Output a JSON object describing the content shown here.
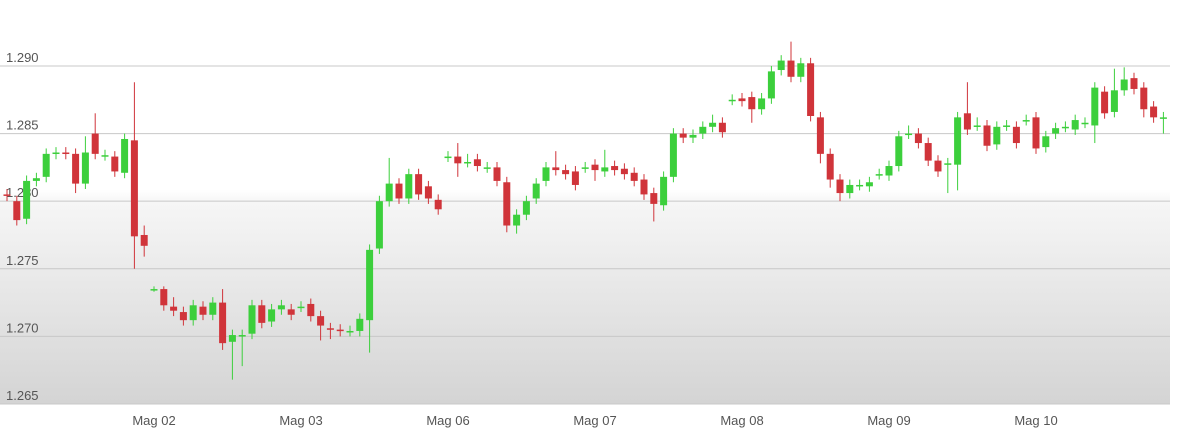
{
  "chart_data": {
    "type": "candlestick",
    "categories": [
      null,
      null,
      null,
      null,
      null,
      null,
      null,
      null,
      null,
      null,
      null,
      null,
      null,
      null,
      null,
      "Mag 02",
      null,
      null,
      null,
      null,
      null,
      null,
      null,
      null,
      null,
      null,
      null,
      null,
      null,
      null,
      "Mag 03",
      null,
      null,
      null,
      null,
      null,
      null,
      null,
      null,
      null,
      null,
      null,
      null,
      null,
      null,
      "Mag 06",
      null,
      null,
      null,
      null,
      null,
      null,
      null,
      null,
      null,
      null,
      null,
      null,
      null,
      null,
      "Mag 07",
      null,
      null,
      null,
      null,
      null,
      null,
      null,
      null,
      null,
      null,
      null,
      null,
      null,
      null,
      "Mag 08",
      null,
      null,
      null,
      null,
      null,
      null,
      null,
      null,
      null,
      null,
      null,
      null,
      null,
      null,
      "Mag 09",
      null,
      null,
      null,
      null,
      null,
      null,
      null,
      null,
      null,
      null,
      null,
      null,
      null,
      null,
      "Mag 10",
      null,
      null,
      null,
      null,
      null,
      null,
      null,
      null,
      null,
      null,
      null,
      null,
      null
    ],
    "open": [
      1.2805,
      1.28,
      1.2787,
      1.2815,
      1.2818,
      1.2835,
      1.2836,
      1.2835,
      1.2813,
      1.285,
      1.2834,
      1.2833,
      1.2821,
      1.2845,
      1.2775,
      1.2735,
      1.2735,
      1.2722,
      1.2718,
      1.2712,
      1.2722,
      1.2716,
      1.2725,
      1.2696,
      1.2701,
      1.2702,
      1.2723,
      1.2711,
      1.272,
      1.272,
      1.2722,
      1.2724,
      1.2715,
      1.2706,
      1.2705,
      1.2704,
      1.2704,
      1.2712,
      1.2765,
      1.28,
      1.2813,
      1.2802,
      1.282,
      1.2811,
      1.2801,
      1.2833,
      1.2833,
      1.2829,
      1.2831,
      1.2825,
      1.2825,
      1.2814,
      1.2782,
      1.279,
      1.2802,
      1.2815,
      1.2825,
      1.2823,
      1.2822,
      1.2825,
      1.2827,
      1.2822,
      1.2826,
      1.2824,
      1.2821,
      1.2816,
      1.2806,
      1.2797,
      1.2818,
      1.285,
      1.2847,
      1.285,
      1.2855,
      1.2858,
      1.2875,
      1.2876,
      1.2877,
      1.2868,
      1.2876,
      1.2897,
      1.2904,
      1.2892,
      1.2902,
      1.2862,
      1.2835,
      1.2816,
      1.2806,
      1.2812,
      1.2811,
      1.282,
      1.2819,
      1.2826,
      1.285,
      1.285,
      1.2843,
      1.283,
      1.2828,
      1.2827,
      1.2865,
      1.2856,
      1.2856,
      1.2842,
      1.2856,
      1.2855,
      1.286,
      1.2862,
      1.284,
      1.285,
      1.2855,
      1.2853,
      1.2858,
      1.2856,
      1.2881,
      1.2866,
      1.2882,
      1.2891,
      1.2884,
      1.287,
      1.2862
    ],
    "high": [
      1.2809,
      1.2804,
      1.2819,
      1.2821,
      1.2839,
      1.284,
      1.284,
      1.2839,
      1.2848,
      1.2865,
      1.2838,
      1.2837,
      1.285,
      1.2888,
      1.2782,
      1.2737,
      1.2737,
      1.2729,
      1.2722,
      1.2727,
      1.2726,
      1.2729,
      1.2735,
      1.2705,
      1.2705,
      1.2727,
      1.2727,
      1.2724,
      1.2727,
      1.2724,
      1.2726,
      1.2728,
      1.2719,
      1.271,
      1.2709,
      1.2708,
      1.2717,
      1.2768,
      1.2804,
      1.2832,
      1.2817,
      1.2824,
      1.2824,
      1.2815,
      1.2805,
      1.2837,
      1.2843,
      1.2835,
      1.2835,
      1.2829,
      1.2829,
      1.2818,
      1.2794,
      1.2804,
      1.2817,
      1.2829,
      1.2837,
      1.2827,
      1.2826,
      1.2829,
      1.2831,
      1.2838,
      1.283,
      1.2828,
      1.2825,
      1.282,
      1.281,
      1.2822,
      1.2854,
      1.2854,
      1.2853,
      1.2859,
      1.2864,
      1.2862,
      1.2879,
      1.288,
      1.2881,
      1.288,
      1.29,
      1.2908,
      1.2918,
      1.2906,
      1.2906,
      1.2866,
      1.2839,
      1.282,
      1.2816,
      1.2816,
      1.2818,
      1.2824,
      1.283,
      1.2852,
      1.2856,
      1.2854,
      1.2847,
      1.2834,
      1.2832,
      1.2866,
      1.2888,
      1.2862,
      1.286,
      1.2859,
      1.286,
      1.2859,
      1.2864,
      1.2866,
      1.2852,
      1.2858,
      1.2859,
      1.2864,
      1.2862,
      1.2888,
      1.2885,
      1.2898,
      1.2899,
      1.2895,
      1.2888,
      1.2874,
      1.2866
    ],
    "low": [
      1.28,
      1.2782,
      1.2783,
      1.2811,
      1.2814,
      1.2831,
      1.2831,
      1.2806,
      1.2809,
      1.2831,
      1.283,
      1.2818,
      1.2817,
      1.275,
      1.2759,
      1.2733,
      1.2719,
      1.2715,
      1.2708,
      1.2708,
      1.2712,
      1.2712,
      1.269,
      1.2668,
      1.2678,
      1.2698,
      1.2706,
      1.2707,
      1.2716,
      1.2712,
      1.2718,
      1.2711,
      1.2697,
      1.2698,
      1.27,
      1.27,
      1.27,
      1.2688,
      1.2761,
      1.2796,
      1.2798,
      1.2798,
      1.2801,
      1.2798,
      1.279,
      1.2829,
      1.2818,
      1.2825,
      1.2822,
      1.2821,
      1.2811,
      1.2777,
      1.2776,
      1.2786,
      1.2798,
      1.2811,
      1.2819,
      1.2816,
      1.2808,
      1.2821,
      1.2815,
      1.2818,
      1.2819,
      1.2816,
      1.2811,
      1.2801,
      1.2785,
      1.2793,
      1.2814,
      1.2843,
      1.2843,
      1.2846,
      1.2851,
      1.2847,
      1.2871,
      1.287,
      1.2858,
      1.2864,
      1.2872,
      1.2893,
      1.2888,
      1.2888,
      1.2859,
      1.2828,
      1.281,
      1.28,
      1.2802,
      1.2808,
      1.2807,
      1.2816,
      1.2815,
      1.2822,
      1.2846,
      1.2839,
      1.2826,
      1.2818,
      1.2806,
      1.2808,
      1.2849,
      1.2852,
      1.2837,
      1.2838,
      1.2852,
      1.2839,
      1.2856,
      1.2835,
      1.2836,
      1.2846,
      1.2851,
      1.2849,
      1.2854,
      1.2843,
      1.2861,
      1.2862,
      1.2878,
      1.2879,
      1.2862,
      1.2858,
      1.285
    ],
    "close": [
      1.2804,
      1.2786,
      1.2815,
      1.2817,
      1.2835,
      1.2836,
      1.2835,
      1.2813,
      1.2836,
      1.2835,
      1.2834,
      1.2822,
      1.2846,
      1.2774,
      1.2767,
      1.2735,
      1.2723,
      1.2719,
      1.2712,
      1.2723,
      1.2716,
      1.2725,
      1.2695,
      1.2701,
      1.2701,
      1.2723,
      1.271,
      1.272,
      1.2723,
      1.2716,
      1.2722,
      1.2715,
      1.2708,
      1.2705,
      1.2704,
      1.2704,
      1.2713,
      1.2764,
      1.28,
      1.2813,
      1.2802,
      1.282,
      1.2805,
      1.2802,
      1.2794,
      1.2833,
      1.2828,
      1.2829,
      1.2826,
      1.2825,
      1.2815,
      1.2782,
      1.279,
      1.28,
      1.2813,
      1.2825,
      1.2823,
      1.282,
      1.2812,
      1.2825,
      1.2823,
      1.2825,
      1.2823,
      1.282,
      1.2815,
      1.2805,
      1.2798,
      1.2818,
      1.285,
      1.2847,
      1.2849,
      1.2855,
      1.2858,
      1.2851,
      1.2875,
      1.2874,
      1.2868,
      1.2876,
      1.2896,
      1.2904,
      1.2892,
      1.2902,
      1.2863,
      1.2835,
      1.2816,
      1.2806,
      1.2812,
      1.2812,
      1.2814,
      1.282,
      1.2826,
      1.2848,
      1.285,
      1.2843,
      1.283,
      1.2822,
      1.2828,
      1.2862,
      1.2853,
      1.2856,
      1.2841,
      1.2855,
      1.2856,
      1.2843,
      1.286,
      1.2839,
      1.2848,
      1.2854,
      1.2855,
      1.286,
      1.2858,
      1.2884,
      1.2865,
      1.2882,
      1.289,
      1.2883,
      1.2868,
      1.2862,
      1.2862
    ],
    "up_color": "#3ccf3c",
    "down_color": "#d0343a",
    "ylim": [
      1.265,
      1.2934
    ],
    "yticks": [
      {
        "value": 1.29,
        "label": "1.290"
      },
      1.285,
      {
        "value": 1.28,
        "label": "1.280"
      },
      1.275,
      {
        "value": 1.27,
        "label": "1.270"
      },
      1.265
    ],
    "grid": true
  }
}
